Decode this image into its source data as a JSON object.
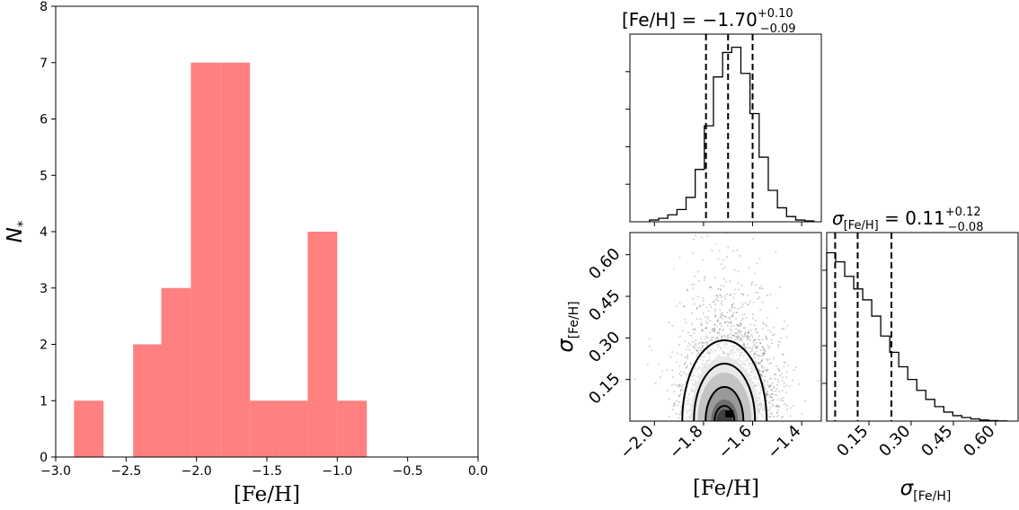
{
  "chart_data": [
    {
      "type": "bar",
      "panel": "histogram",
      "xlabel": "[Fe/H]",
      "ylabel": "N*",
      "xlim": [
        -3.0,
        0.0
      ],
      "ylim": [
        0,
        8
      ],
      "xticks": [
        -3.0,
        -2.5,
        -2.0,
        -1.5,
        -1.0,
        -0.5,
        0.0
      ],
      "xtick_labels": [
        "−3.0",
        "−2.5",
        "−2.0",
        "−1.5",
        "−1.0",
        "−0.5",
        "0.0"
      ],
      "yticks": [
        0,
        1,
        2,
        3,
        4,
        5,
        6,
        7,
        8
      ],
      "ytick_labels": [
        "0",
        "1",
        "2",
        "3",
        "4",
        "5",
        "6",
        "7",
        "8"
      ],
      "bar_color": "#ff8080",
      "bins": [
        {
          "x0": -2.87,
          "x1": -2.66,
          "count": 1
        },
        {
          "x0": -2.66,
          "x1": -2.45,
          "count": 0
        },
        {
          "x0": -2.45,
          "x1": -2.25,
          "count": 2
        },
        {
          "x0": -2.25,
          "x1": -2.04,
          "count": 3
        },
        {
          "x0": -2.04,
          "x1": -1.83,
          "count": 7
        },
        {
          "x0": -1.83,
          "x1": -1.62,
          "count": 7
        },
        {
          "x0": -1.62,
          "x1": -1.41,
          "count": 1
        },
        {
          "x0": -1.41,
          "x1": -1.21,
          "count": 1
        },
        {
          "x0": -1.21,
          "x1": -1.0,
          "count": 4
        },
        {
          "x0": -1.0,
          "x1": -0.79,
          "count": 1
        }
      ]
    },
    {
      "type": "corner",
      "panel": "posterior",
      "params": [
        {
          "name": "[Fe/H]",
          "title_label": "[Fe/H] = −1.70",
          "sup": "+0.10",
          "sub": "−0.09",
          "median": -1.7,
          "q16": -1.79,
          "q84": -1.6,
          "range": [
            -2.1,
            -1.32
          ],
          "ticks": [
            -2.0,
            -1.8,
            -1.6,
            -1.4
          ],
          "tick_labels": [
            "−2.0",
            "−1.8",
            "−1.6",
            "−1.4"
          ]
        },
        {
          "name": "σ[Fe/H]",
          "title_label": "σ[Fe/H] = 0.11",
          "sup": "+0.12",
          "sub": "−0.08",
          "median": 0.11,
          "q16": 0.03,
          "q84": 0.23,
          "range": [
            0.0,
            0.68
          ],
          "ticks": [
            0.15,
            0.3,
            0.45,
            0.6
          ],
          "tick_labels": [
            "0.15",
            "0.30",
            "0.45",
            "0.60"
          ]
        }
      ],
      "xlabels": {
        "left": "[Fe/H]",
        "right": "σ[Fe/H]"
      },
      "ylabel": "σ[Fe/H]",
      "hist_feh": [
        0.01,
        0.02,
        0.04,
        0.07,
        0.14,
        0.3,
        0.55,
        0.83,
        0.97,
        1.0,
        0.85,
        0.62,
        0.37,
        0.18,
        0.08,
        0.03,
        0.01,
        0.005
      ],
      "hist_sigma": [
        0.93,
        0.88,
        0.8,
        0.73,
        0.67,
        0.58,
        0.47,
        0.38,
        0.3,
        0.23,
        0.17,
        0.12,
        0.08,
        0.05,
        0.03,
        0.02,
        0.012,
        0.006,
        0.003,
        0.001
      ]
    }
  ]
}
